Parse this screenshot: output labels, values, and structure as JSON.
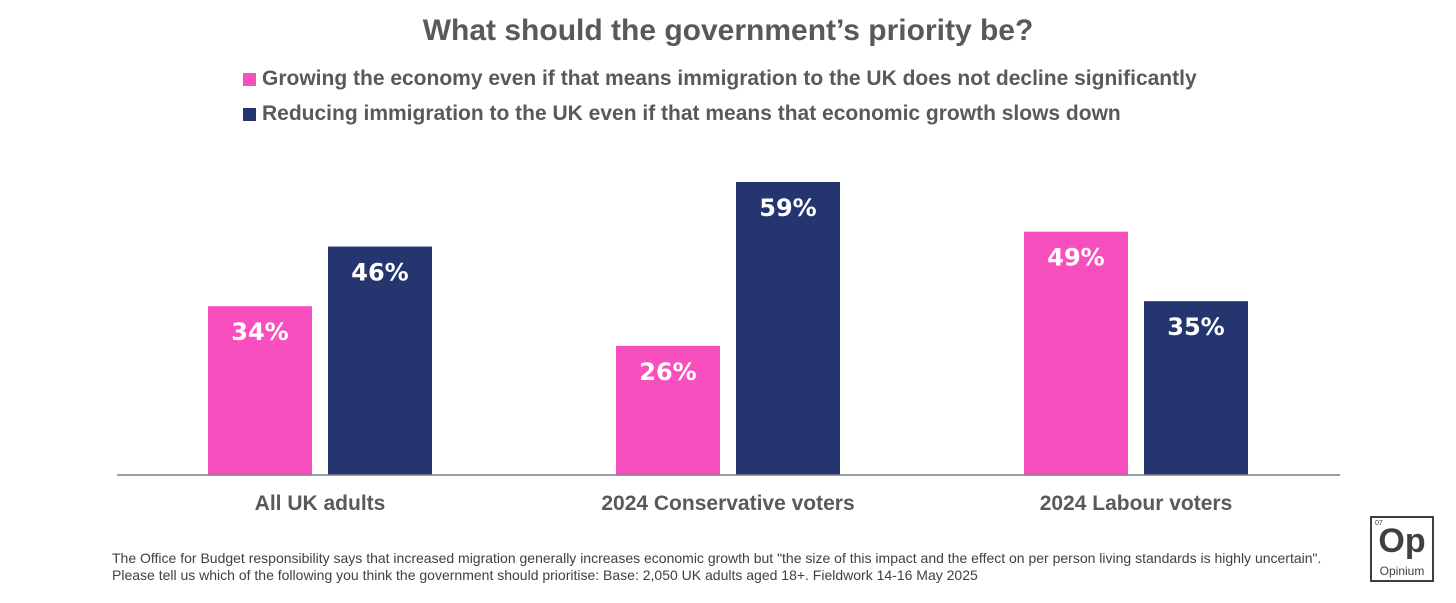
{
  "chart_data": {
    "type": "bar",
    "title": "What should the government’s priority be?",
    "categories": [
      "All UK adults",
      "2024 Conservative voters",
      "2024 Labour voters"
    ],
    "series": [
      {
        "name": "Growing the economy even if that means immigration to the UK does not decline significantly",
        "color": "#f74fbe",
        "values": [
          34,
          26,
          49
        ],
        "labels": [
          "34%",
          "26%",
          "49%"
        ]
      },
      {
        "name": "Reducing immigration to the UK even if that means that economic growth slows down",
        "color": "#243570",
        "values": [
          46,
          59,
          35
        ],
        "labels": [
          "46%",
          "59%",
          "35%"
        ]
      }
    ],
    "ylim": [
      0,
      60
    ],
    "grid": false,
    "legend_position": "top"
  },
  "footnote": "The Office for Budget responsibility says that increased migration generally increases economic growth but \"the size of this impact and the effect on per person living standards is highly uncertain\". Please tell us which of the following you think the government should prioritise: Base: 2,050 UK adults aged 18+. Fieldwork 14-16 May 2025",
  "logo": {
    "number": "07",
    "mark": "Op",
    "name": "Opinium"
  }
}
